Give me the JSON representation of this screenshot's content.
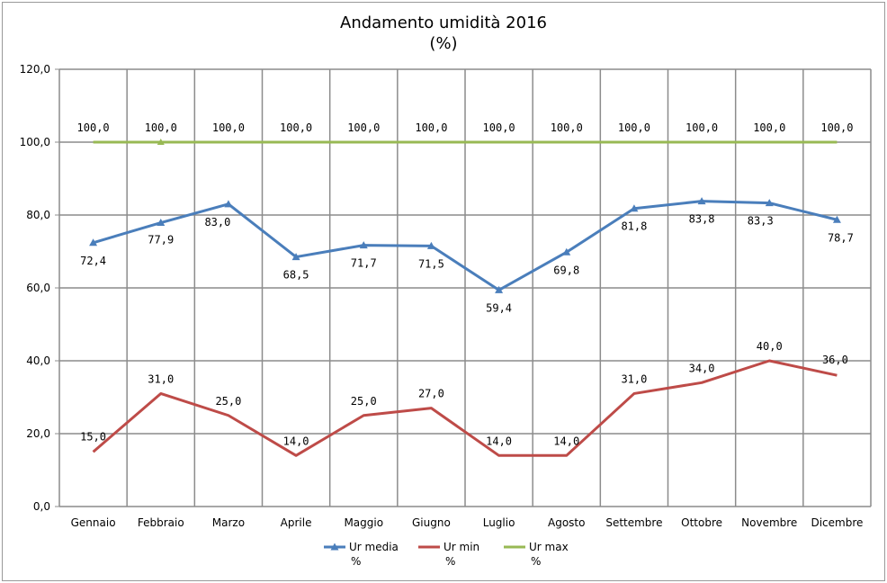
{
  "chart_data": {
    "type": "line",
    "title": "Andamento umidità 2016",
    "subtitle": "(%)",
    "xlabel": "",
    "ylabel": "",
    "ylim": [
      0,
      120
    ],
    "yticks": [
      "0,0",
      "20,0",
      "40,0",
      "60,0",
      "80,0",
      "100,0",
      "120,0"
    ],
    "grid": true,
    "legend_position": "bottom",
    "categories": [
      "Gennaio",
      "Febbraio",
      "Marzo",
      "Aprile",
      "Maggio",
      "Giugno",
      "Luglio",
      "Agosto",
      "Settembre",
      "Ottobre",
      "Novembre",
      "Dicembre"
    ],
    "series": [
      {
        "name": "Ur media %",
        "legend_lines": [
          "Ur media",
          "%"
        ],
        "color": "#4a7ebb",
        "marker": "triangle",
        "values": [
          72.4,
          77.9,
          83.0,
          68.5,
          71.7,
          71.5,
          59.4,
          69.8,
          81.8,
          83.8,
          83.3,
          78.7
        ],
        "labels": [
          "72,4",
          "77,9",
          "83,0",
          "68,5",
          "71,7",
          "71,5",
          "59,4",
          "69,8",
          "81,8",
          "83,8",
          "83,3",
          "78,7"
        ]
      },
      {
        "name": "Ur min %",
        "legend_lines": [
          "Ur min",
          "%"
        ],
        "color": "#be4b48",
        "marker": "none",
        "values": [
          15.0,
          31.0,
          25.0,
          14.0,
          25.0,
          27.0,
          14.0,
          14.0,
          31.0,
          34.0,
          40.0,
          36.0
        ],
        "labels": [
          "15,0",
          "31,0",
          "25,0",
          "14,0",
          "25,0",
          "27,0",
          "14,0",
          "14,0",
          "31,0",
          "34,0",
          "40,0",
          "36,0"
        ]
      },
      {
        "name": "Ur max %",
        "legend_lines": [
          "Ur max",
          "%"
        ],
        "color": "#98b954",
        "marker": "none",
        "values": [
          100.0,
          100.0,
          100.0,
          100.0,
          100.0,
          100.0,
          100.0,
          100.0,
          100.0,
          100.0,
          100.0,
          100.0
        ],
        "labels": [
          "100,0",
          "100,0",
          "100,0",
          "100,0",
          "100,0",
          "100,0",
          "100,0",
          "100,0",
          "100,0",
          "100,0",
          "100,0",
          "100,0"
        ]
      }
    ]
  }
}
